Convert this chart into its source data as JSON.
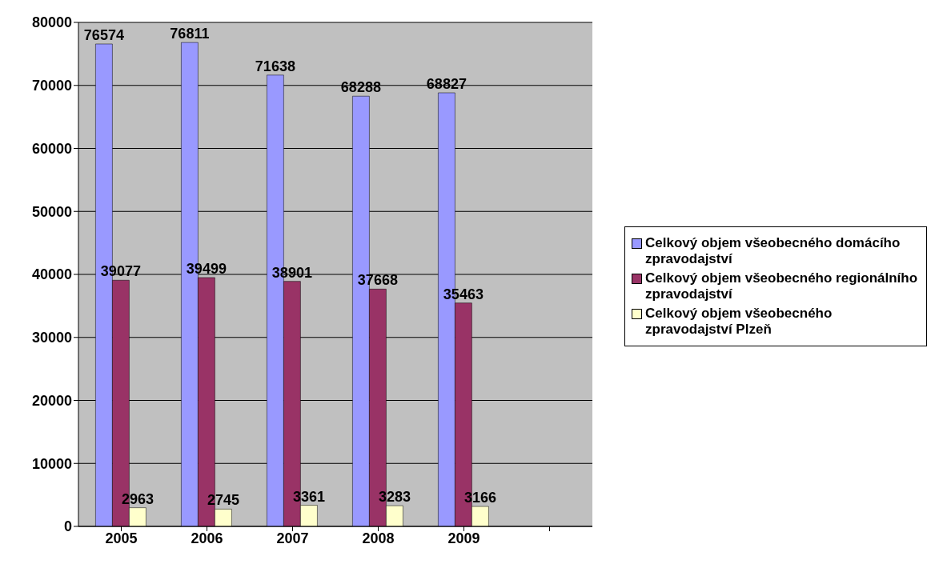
{
  "chart_data": {
    "type": "bar",
    "categories": [
      "2005",
      "2006",
      "2007",
      "2008",
      "2009",
      null
    ],
    "series": [
      {
        "name": "Celkový objem všeobecného domácího zpravodajství",
        "color": "#9999ff",
        "values": [
          76574,
          76811,
          71638,
          68288,
          68827,
          null
        ]
      },
      {
        "name": "Celkový objem všeobecného regionálního zpravodajství",
        "color": "#993366",
        "values": [
          39077,
          39499,
          38901,
          37668,
          35463,
          null
        ]
      },
      {
        "name": "Celkový objem všeobecného zpravodajství Plzeň",
        "color": "#ffffcc",
        "values": [
          2963,
          2745,
          3361,
          3283,
          3166,
          null
        ]
      }
    ],
    "ylim": [
      0,
      80000
    ],
    "yticks": [
      0,
      10000,
      20000,
      30000,
      40000,
      50000,
      60000,
      70000,
      80000
    ],
    "grid": "y",
    "legend": "right",
    "data_labels": true
  }
}
